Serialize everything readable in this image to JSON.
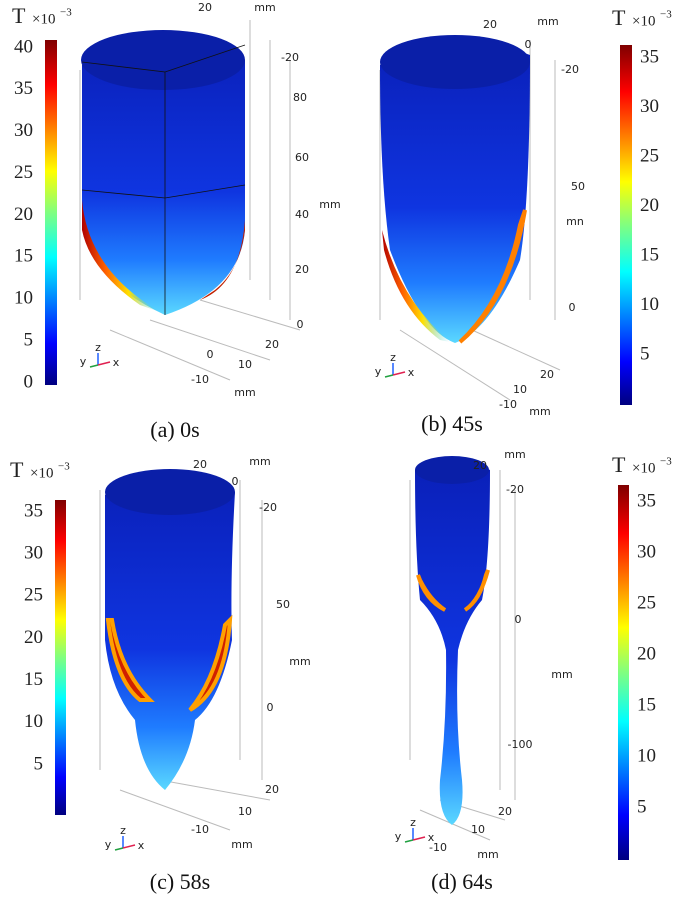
{
  "panels": [
    {
      "caption": "(a) 0s",
      "colorbar": {
        "symbol": "T",
        "scale": "×10",
        "exponent": "−3",
        "ticks": [
          "0",
          "5",
          "10",
          "15",
          "20",
          "25",
          "30",
          "35",
          "40"
        ]
      },
      "axis_labels": [
        "20",
        "mm",
        "-20",
        "80",
        "60",
        "40",
        "mm",
        "20",
        "0",
        "0",
        "10",
        "20",
        "-10",
        "mm"
      ],
      "triad": [
        "y",
        "z",
        "x"
      ]
    },
    {
      "caption": "(b) 45s",
      "colorbar": {
        "symbol": "T",
        "scale": "×10",
        "exponent": "−3",
        "ticks": [
          "5",
          "10",
          "15",
          "20",
          "25",
          "30",
          "35"
        ]
      },
      "axis_labels": [
        "20",
        "mm",
        "0",
        "-20",
        "50",
        "mn",
        "0",
        "20",
        "10",
        "-10",
        "mm"
      ],
      "triad": [
        "y",
        "z",
        "x"
      ]
    },
    {
      "caption": "(c) 58s",
      "colorbar": {
        "symbol": "T",
        "scale": "×10",
        "exponent": "−3",
        "ticks": [
          "5",
          "10",
          "15",
          "20",
          "25",
          "30",
          "35"
        ]
      },
      "axis_labels": [
        "20",
        "mm",
        "0",
        "-20",
        "50",
        "mm",
        "0",
        "20",
        "10",
        "-10",
        "mm"
      ],
      "triad": [
        "y",
        "z",
        "x"
      ]
    },
    {
      "caption": "(d) 64s",
      "colorbar": {
        "symbol": "T",
        "scale": "×10",
        "exponent": "−3",
        "ticks": [
          "5",
          "10",
          "15",
          "20",
          "25",
          "30",
          "35"
        ]
      },
      "axis_labels": [
        "20",
        "mm",
        "-20",
        "0",
        "mm",
        "-100",
        "20",
        "10",
        "-10",
        "mm"
      ],
      "triad": [
        "y",
        "z",
        "x"
      ]
    }
  ]
}
